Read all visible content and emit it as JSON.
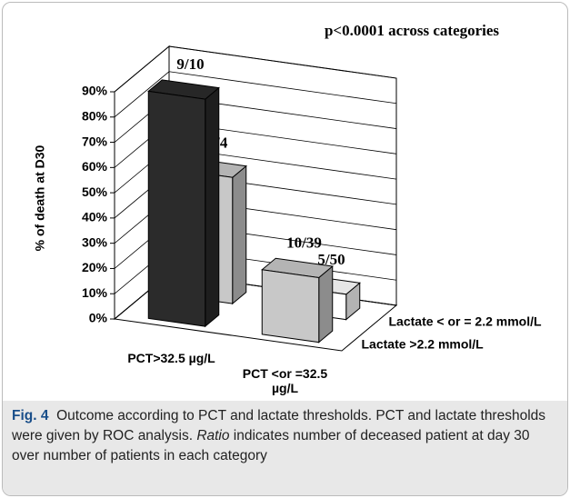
{
  "chart_data": {
    "type": "bar3d",
    "title": "p<0.0001 across categories",
    "y_label": "% of death at D30",
    "categories": [
      "PCT>32.5 µg/L",
      "PCT <or =32.5 µg/L"
    ],
    "series": [
      {
        "name": "Lactate >2.2 mmol/L",
        "colors": [
          "#2b2b2b",
          "#c8c8c8"
        ],
        "values": [
          90,
          25.6
        ],
        "value_labels": [
          "9/10",
          "10/39"
        ]
      },
      {
        "name": "Lactate < or = 2.2 mmol/L",
        "colors": [
          "#c8c8c8",
          "#ffffff"
        ],
        "values": [
          50,
          10
        ],
        "value_labels": [
          "2/4",
          "5/50"
        ]
      }
    ],
    "ylim": [
      0,
      90
    ],
    "yticks": [
      {
        "value": 0,
        "label": "0%"
      },
      {
        "value": 10,
        "label": "10%"
      },
      {
        "value": 20,
        "label": "20%"
      },
      {
        "value": 30,
        "label": "30%"
      },
      {
        "value": 40,
        "label": "40%"
      },
      {
        "value": 50,
        "label": "50%"
      },
      {
        "value": 60,
        "label": "60%"
      },
      {
        "value": 70,
        "label": "70%"
      },
      {
        "value": 80,
        "label": "80%"
      },
      {
        "value": 90,
        "label": "90%"
      }
    ],
    "grid": true
  },
  "caption": {
    "label": "Fig. 4",
    "parts": [
      "Outcome according to PCT and lactate thresholds. PCT and lactate thresholds were given by ROC analysis. ",
      "Ratio",
      " indicates number of deceased patient at day 30 over number of patients in each category"
    ]
  }
}
